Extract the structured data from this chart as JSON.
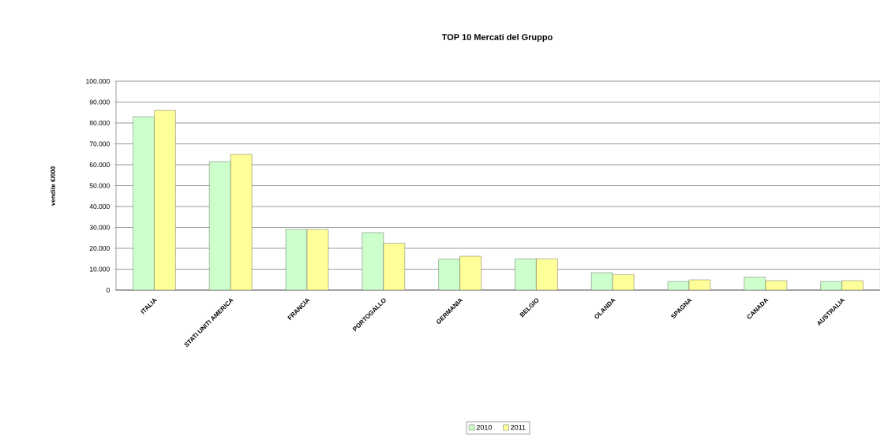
{
  "chart_data": {
    "type": "bar",
    "title": "TOP 10 Mercati del Gruppo",
    "ylabel": "vendite €/000",
    "categories": [
      "ITALIA",
      "STATI UNITI AMERICA",
      "FRANCIA",
      "PORTOGALLO",
      "GERMANIA",
      "BELGIO",
      "OLANDA",
      "SPAGNA",
      "CANADA",
      "AUSTRALIA"
    ],
    "series": [
      {
        "name": "2010",
        "color": "#ccffcc",
        "values": [
          83000,
          61500,
          29000,
          27500,
          14800,
          14900,
          8300,
          4100,
          6200,
          4100
        ]
      },
      {
        "name": "2011",
        "color": "#ffff99",
        "values": [
          86000,
          65000,
          29000,
          22400,
          16200,
          14900,
          7400,
          4900,
          4500,
          4500
        ]
      }
    ],
    "ylim": [
      0,
      100000
    ],
    "yticks": [
      {
        "value": 0,
        "label": "0"
      },
      {
        "value": 10000,
        "label": "10.000"
      },
      {
        "value": 20000,
        "label": "20.000"
      },
      {
        "value": 30000,
        "label": "30.000"
      },
      {
        "value": 40000,
        "label": "40.000"
      },
      {
        "value": 50000,
        "label": "50.000"
      },
      {
        "value": 60000,
        "label": "60.000"
      },
      {
        "value": 70000,
        "label": "70.000"
      },
      {
        "value": 80000,
        "label": "80.000"
      },
      {
        "value": 90000,
        "label": "90.000"
      },
      {
        "value": 100000,
        "label": "100.000"
      }
    ],
    "grid": "y",
    "legend": "bottom"
  }
}
